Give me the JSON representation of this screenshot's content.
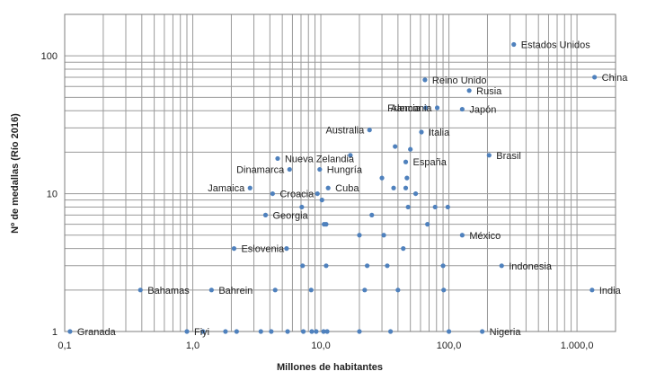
{
  "chart_data": {
    "type": "scatter",
    "xlabel": "Millones de habitantes",
    "ylabel": "Nº de medallas (Río 2016)",
    "x_scale": "log",
    "y_scale": "log",
    "xlim": [
      0.1,
      2000
    ],
    "ylim": [
      1,
      200
    ],
    "x_ticks": [
      0.1,
      1,
      10,
      100,
      1000
    ],
    "x_tick_labels": [
      "0,1",
      "1,0",
      "10,0",
      "100,0",
      "1.000,0"
    ],
    "y_ticks": [
      1,
      10,
      100
    ],
    "y_tick_labels": [
      "1",
      "10",
      "100"
    ],
    "grid": true,
    "marker_color": "#4f81bd",
    "points": [
      {
        "x": 321,
        "y": 121,
        "label": "Estados Unidos"
      },
      {
        "x": 1371,
        "y": 70,
        "label": "China"
      },
      {
        "x": 65,
        "y": 67,
        "label": "Reino Unido"
      },
      {
        "x": 144,
        "y": 56,
        "label": "Rusia"
      },
      {
        "x": 81,
        "y": 42,
        "label": "Alemania"
      },
      {
        "x": 66,
        "y": 42,
        "label": "Francia"
      },
      {
        "x": 127,
        "y": 41,
        "label": "Japón"
      },
      {
        "x": 24,
        "y": 29,
        "label": "Australia"
      },
      {
        "x": 61,
        "y": 28,
        "label": "Italia"
      },
      {
        "x": 206,
        "y": 19,
        "label": "Brasil"
      },
      {
        "x": 4.6,
        "y": 18,
        "label": "Nueva Zelandia"
      },
      {
        "x": 46,
        "y": 17,
        "label": "España"
      },
      {
        "x": 5.7,
        "y": 15,
        "label": "Dinamarca"
      },
      {
        "x": 9.8,
        "y": 15,
        "label": "Hungría"
      },
      {
        "x": 2.8,
        "y": 11,
        "label": "Jamaica"
      },
      {
        "x": 11.4,
        "y": 11,
        "label": "Cuba"
      },
      {
        "x": 4.2,
        "y": 10,
        "label": "Croacia"
      },
      {
        "x": 3.7,
        "y": 7,
        "label": "Georgia"
      },
      {
        "x": 127,
        "y": 5,
        "label": "México"
      },
      {
        "x": 2.1,
        "y": 4,
        "label": "Eslovenia"
      },
      {
        "x": 258,
        "y": 3,
        "label": "Indonesia"
      },
      {
        "x": 0.39,
        "y": 2,
        "label": "Bahamas"
      },
      {
        "x": 1.4,
        "y": 2,
        "label": "Bahrein"
      },
      {
        "x": 1311,
        "y": 2,
        "label": "India"
      },
      {
        "x": 0.11,
        "y": 1,
        "label": "Granada"
      },
      {
        "x": 0.9,
        "y": 1,
        "label": "Fiyi"
      },
      {
        "x": 182,
        "y": 1,
        "label": "Nigeria"
      },
      {
        "x": 38,
        "y": 22,
        "label": ""
      },
      {
        "x": 50,
        "y": 21,
        "label": ""
      },
      {
        "x": 17,
        "y": 19,
        "label": ""
      },
      {
        "x": 47,
        "y": 13,
        "label": ""
      },
      {
        "x": 30,
        "y": 13,
        "label": ""
      },
      {
        "x": 9.4,
        "y": 10,
        "label": ""
      },
      {
        "x": 37,
        "y": 11,
        "label": ""
      },
      {
        "x": 46,
        "y": 11,
        "label": ""
      },
      {
        "x": 10.2,
        "y": 9,
        "label": ""
      },
      {
        "x": 55,
        "y": 10,
        "label": ""
      },
      {
        "x": 7.1,
        "y": 8,
        "label": ""
      },
      {
        "x": 48,
        "y": 8,
        "label": ""
      },
      {
        "x": 78,
        "y": 8,
        "label": ""
      },
      {
        "x": 98,
        "y": 8,
        "label": ""
      },
      {
        "x": 25,
        "y": 7,
        "label": ""
      },
      {
        "x": 10.6,
        "y": 6,
        "label": ""
      },
      {
        "x": 11,
        "y": 6,
        "label": ""
      },
      {
        "x": 68,
        "y": 6,
        "label": ""
      },
      {
        "x": 20,
        "y": 5,
        "label": ""
      },
      {
        "x": 31,
        "y": 5,
        "label": ""
      },
      {
        "x": 44,
        "y": 4,
        "label": ""
      },
      {
        "x": 5.4,
        "y": 4,
        "label": ""
      },
      {
        "x": 7.2,
        "y": 3,
        "label": ""
      },
      {
        "x": 11,
        "y": 3,
        "label": ""
      },
      {
        "x": 23,
        "y": 3,
        "label": ""
      },
      {
        "x": 33,
        "y": 3,
        "label": ""
      },
      {
        "x": 90,
        "y": 3,
        "label": ""
      },
      {
        "x": 4.4,
        "y": 2,
        "label": ""
      },
      {
        "x": 8.4,
        "y": 2,
        "label": ""
      },
      {
        "x": 22,
        "y": 2,
        "label": ""
      },
      {
        "x": 40,
        "y": 2,
        "label": ""
      },
      {
        "x": 91,
        "y": 2,
        "label": ""
      },
      {
        "x": 1.2,
        "y": 1,
        "label": ""
      },
      {
        "x": 1.8,
        "y": 1,
        "label": ""
      },
      {
        "x": 2.2,
        "y": 1,
        "label": ""
      },
      {
        "x": 3.4,
        "y": 1,
        "label": ""
      },
      {
        "x": 4.1,
        "y": 1,
        "label": ""
      },
      {
        "x": 5.5,
        "y": 1,
        "label": ""
      },
      {
        "x": 7.3,
        "y": 1,
        "label": ""
      },
      {
        "x": 8.5,
        "y": 1,
        "label": ""
      },
      {
        "x": 9.2,
        "y": 1,
        "label": ""
      },
      {
        "x": 10.5,
        "y": 1,
        "label": ""
      },
      {
        "x": 11.2,
        "y": 1,
        "label": ""
      },
      {
        "x": 20,
        "y": 1,
        "label": ""
      },
      {
        "x": 35,
        "y": 1,
        "label": ""
      },
      {
        "x": 100,
        "y": 1,
        "label": ""
      }
    ]
  }
}
